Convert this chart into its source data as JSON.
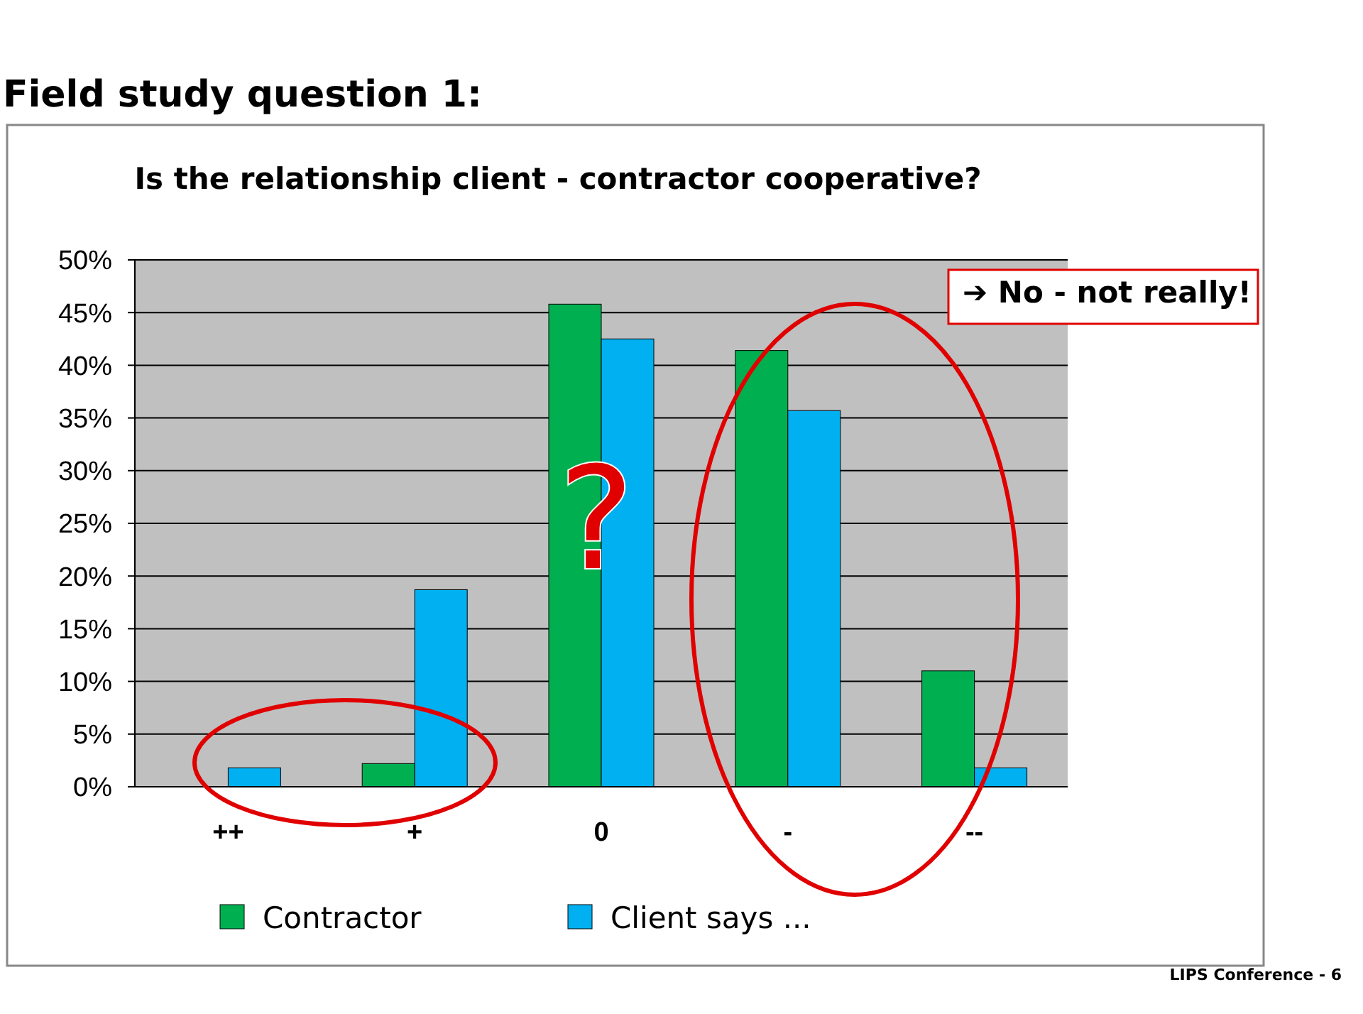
{
  "chart_data": {
    "type": "bar",
    "title": "Is the relationship client - contractor cooperative?",
    "categories": [
      "++",
      "+",
      "0",
      "-",
      "--"
    ],
    "series": [
      {
        "name": "Contractor",
        "color": "#00b050",
        "values": [
          0,
          2.2,
          45.8,
          41.4,
          11
        ]
      },
      {
        "name": "Client says ...",
        "color": "#00b0f0",
        "values": [
          1.8,
          18.7,
          42.5,
          35.7,
          1.8
        ]
      }
    ],
    "ylim": [
      0,
      50
    ],
    "yticks": [
      {
        "value": 0,
        "label": "0%"
      },
      {
        "value": 5,
        "label": "5%"
      },
      {
        "value": 10,
        "label": "10%"
      },
      {
        "value": 15,
        "label": "15%"
      },
      {
        "value": 20,
        "label": "20%"
      },
      {
        "value": 25,
        "label": "25%"
      },
      {
        "value": 30,
        "label": "30%"
      },
      {
        "value": 35,
        "label": "35%"
      },
      {
        "value": 40,
        "label": "40%"
      },
      {
        "value": 45,
        "label": "45%"
      },
      {
        "value": 50,
        "label": "50%"
      }
    ],
    "grid": "y",
    "legend": "bottom",
    "annotations": [
      "Field study question 1:",
      "➔ No - not really!",
      "?",
      "LIPS Conference - 6"
    ]
  }
}
